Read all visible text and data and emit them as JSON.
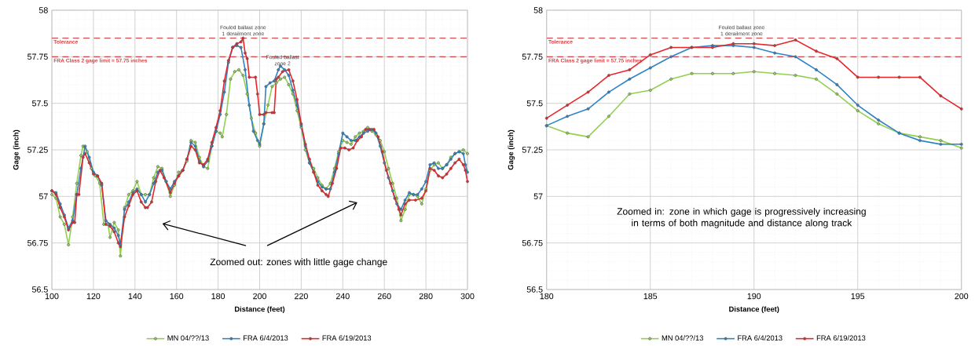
{
  "chart_data": [
    {
      "type": "line",
      "xlabel": "Distance (feet)",
      "ylabel": "Gage (inch)",
      "xlim": [
        100,
        300
      ],
      "xticks": [
        100,
        120,
        140,
        160,
        180,
        200,
        220,
        240,
        260,
        280,
        300
      ],
      "ylim": [
        56.5,
        58
      ],
      "yticks": [
        56.5,
        56.75,
        57,
        57.25,
        57.5,
        57.75,
        58
      ],
      "grid": true,
      "legend": "bottom",
      "marker": "circle",
      "line_style": "solid",
      "series": [
        {
          "name": "MN 04/??/13",
          "color": "#92d050",
          "x": [
            100,
            102,
            104,
            106,
            108,
            110,
            112,
            114,
            115,
            117,
            119,
            121,
            123,
            125,
            127,
            128,
            130,
            132,
            133,
            135,
            137,
            139,
            141,
            143,
            145,
            147,
            149,
            151,
            153,
            155,
            157,
            159,
            161,
            163,
            165,
            167,
            169,
            171,
            173,
            175,
            177,
            179,
            181,
            182,
            184,
            186,
            188,
            190,
            192,
            194,
            196,
            198,
            200,
            202,
            204,
            206,
            208,
            210,
            212,
            214,
            216,
            218,
            220,
            222,
            224,
            226,
            228,
            230,
            232,
            234,
            236,
            238,
            240,
            242,
            244,
            246,
            248,
            250,
            252,
            254,
            256,
            258,
            260,
            262,
            264,
            266,
            268,
            270,
            272,
            274,
            276,
            278,
            280,
            282,
            284,
            286,
            288,
            290,
            292,
            294,
            296,
            298,
            300
          ],
          "values": [
            57.01,
            56.99,
            56.89,
            56.85,
            56.74,
            56.89,
            57.07,
            57.22,
            57.27,
            57.24,
            57.15,
            57.11,
            57.07,
            56.85,
            56.85,
            56.78,
            56.86,
            56.82,
            56.68,
            56.94,
            57.01,
            57.03,
            57.08,
            57.01,
            57.01,
            57.01,
            57.1,
            57.16,
            57.15,
            57.08,
            57.0,
            57.06,
            57.13,
            57.14,
            57.19,
            57.3,
            57.29,
            57.21,
            57.16,
            57.15,
            57.27,
            57.35,
            57.34,
            57.32,
            57.44,
            57.63,
            57.67,
            57.68,
            57.65,
            57.55,
            57.42,
            57.34,
            57.27,
            57.39,
            57.49,
            57.59,
            57.61,
            57.63,
            57.64,
            57.6,
            57.55,
            57.46,
            57.37,
            57.25,
            57.18,
            57.15,
            57.1,
            57.06,
            57.04,
            57.07,
            57.15,
            57.24,
            57.3,
            57.29,
            57.28,
            57.32,
            57.34,
            57.35,
            57.37,
            57.35,
            57.33,
            57.3,
            57.24,
            57.15,
            57.07,
            56.99,
            56.87,
            56.93,
            57.01,
            57.01,
            57.0,
            56.96,
            57.04,
            57.14,
            57.17,
            57.18,
            57.15,
            57.17,
            57.21,
            57.23,
            57.24,
            57.25,
            57.23
          ]
        },
        {
          "name": "FRA 6/4/2013",
          "color": "#2e84c6",
          "x": [
            100,
            102,
            104,
            106,
            108,
            110,
            112,
            114,
            116,
            118,
            120,
            122,
            124,
            126,
            128,
            130,
            132,
            133,
            135,
            137,
            139,
            141,
            143,
            145,
            147,
            149,
            151,
            153,
            155,
            157,
            159,
            161,
            163,
            165,
            167,
            169,
            171,
            173,
            175,
            177,
            179,
            181,
            183,
            185,
            187,
            189,
            191,
            193,
            195,
            197,
            199,
            200,
            202,
            203,
            205,
            207,
            209,
            210,
            212,
            214,
            216,
            218,
            220,
            222,
            224,
            226,
            228,
            230,
            232,
            234,
            236,
            238,
            240,
            242,
            244,
            246,
            248,
            250,
            252,
            254,
            256,
            258,
            260,
            262,
            264,
            266,
            268,
            270,
            272,
            274,
            276,
            278,
            280,
            282,
            284,
            286,
            288,
            290,
            292,
            294,
            296,
            298,
            299,
            300
          ],
          "values": [
            57.03,
            57.02,
            56.96,
            56.9,
            56.83,
            56.87,
            57.01,
            57.15,
            57.27,
            57.21,
            57.13,
            57.11,
            57.06,
            56.87,
            56.85,
            56.83,
            56.79,
            56.74,
            56.93,
            56.97,
            57.02,
            57.04,
            57.01,
            56.97,
            57.01,
            57.07,
            57.13,
            57.14,
            57.08,
            57.04,
            57.08,
            57.11,
            57.14,
            57.2,
            57.29,
            57.27,
            57.19,
            57.16,
            57.19,
            57.27,
            57.35,
            57.44,
            57.56,
            57.72,
            57.8,
            57.81,
            57.8,
            57.68,
            57.49,
            57.35,
            57.3,
            57.28,
            57.39,
            57.59,
            57.61,
            57.62,
            57.68,
            57.7,
            57.68,
            57.65,
            57.57,
            57.49,
            57.38,
            57.27,
            57.18,
            57.13,
            57.08,
            57.05,
            57.04,
            57.04,
            57.13,
            57.23,
            57.34,
            57.32,
            57.3,
            57.3,
            57.32,
            57.34,
            57.35,
            57.36,
            57.34,
            57.27,
            57.18,
            57.1,
            57.03,
            56.96,
            56.93,
            56.98,
            57.02,
            57.01,
            57.01,
            57.04,
            57.08,
            57.17,
            57.18,
            57.15,
            57.15,
            57.17,
            57.2,
            57.23,
            57.24,
            57.23,
            57.17,
            57.13
          ]
        },
        {
          "name": "FRA 6/19/2013",
          "color": "#e8262a",
          "x": [
            100,
            102,
            104,
            106,
            108,
            110,
            111,
            112,
            113,
            115,
            116,
            118,
            120,
            122,
            124,
            126,
            128,
            130,
            132,
            133,
            135,
            137,
            139,
            141,
            143,
            145,
            146,
            148,
            150,
            152,
            154,
            157,
            159,
            161,
            163,
            165,
            167,
            169,
            171,
            173,
            175,
            177,
            179,
            181,
            183,
            185,
            187,
            189,
            191,
            192,
            193,
            194,
            195,
            198,
            199,
            200,
            202,
            203,
            206,
            207,
            208,
            209,
            211,
            214,
            216,
            218,
            220,
            222,
            224,
            226,
            228,
            230,
            232,
            233,
            235,
            237,
            239,
            241,
            243,
            245,
            247,
            249,
            251,
            253,
            255,
            257,
            259,
            261,
            263,
            265,
            267,
            268,
            270,
            272,
            275,
            278,
            280,
            282,
            284,
            286,
            288,
            290,
            292,
            294,
            296,
            298,
            299,
            300
          ],
          "values": [
            57.03,
            57.01,
            56.94,
            56.89,
            56.82,
            56.86,
            56.86,
            57.01,
            57.01,
            57.21,
            57.23,
            57.18,
            57.12,
            57.11,
            57.07,
            56.85,
            56.84,
            56.81,
            56.75,
            56.73,
            56.89,
            56.95,
            57.01,
            57.03,
            56.97,
            56.94,
            56.94,
            56.97,
            57.08,
            57.14,
            57.1,
            57.02,
            57.07,
            57.11,
            57.14,
            57.2,
            57.27,
            57.25,
            57.18,
            57.17,
            57.2,
            57.29,
            57.37,
            57.46,
            57.62,
            57.73,
            57.8,
            57.82,
            57.83,
            57.85,
            57.77,
            57.74,
            57.64,
            57.64,
            57.55,
            57.44,
            57.44,
            57.45,
            57.45,
            57.45,
            57.63,
            57.64,
            57.67,
            57.68,
            57.62,
            57.52,
            57.39,
            57.28,
            57.2,
            57.13,
            57.06,
            57.03,
            57.01,
            57.0,
            57.07,
            57.15,
            57.26,
            57.26,
            57.25,
            57.26,
            57.3,
            57.32,
            57.36,
            57.36,
            57.36,
            57.32,
            57.24,
            57.14,
            57.07,
            56.99,
            56.93,
            56.9,
            56.96,
            56.98,
            56.98,
            56.99,
            57.03,
            57.15,
            57.14,
            57.11,
            57.1,
            57.12,
            57.15,
            57.18,
            57.2,
            57.17,
            57.14,
            57.08
          ]
        }
      ],
      "ref_lines": [
        {
          "axis": "y",
          "value": 57.85,
          "label": "Tolerance",
          "color": "#d0464a",
          "line_style": "dashed"
        },
        {
          "axis": "y",
          "value": 57.75,
          "label": "FRA Class 2 gage limit = 57.75 inches",
          "color": "#d0464a",
          "line_style": "dashed"
        }
      ],
      "annotations": [
        {
          "text": "Fouled ballast zone 1 derailment zone",
          "x": 192,
          "y": 57.86
        },
        {
          "text": "Fouled ballast zone 2",
          "x": 211,
          "y": 57.7
        },
        "Zoomed out: zones with little gage change"
      ]
    },
    {
      "type": "line",
      "xlabel": "Distance (feet)",
      "ylabel": "Gage (inch)",
      "xlim": [
        180,
        200
      ],
      "xticks": [
        180,
        185,
        190,
        195,
        200
      ],
      "ylim": [
        56.5,
        58
      ],
      "yticks": [
        56.5,
        56.75,
        57,
        57.25,
        57.5,
        57.75,
        58
      ],
      "grid": true,
      "legend": "bottom",
      "marker": "circle",
      "line_style": "solid",
      "series": [
        {
          "name": "MN 04/??/13",
          "color": "#92d050",
          "x": [
            180,
            181,
            182,
            183,
            184,
            185,
            186,
            187,
            188,
            189,
            190,
            191,
            192,
            193,
            194,
            195,
            196,
            197,
            198,
            199,
            200
          ],
          "values": [
            57.38,
            57.34,
            57.32,
            57.43,
            57.55,
            57.57,
            57.63,
            57.66,
            57.66,
            57.66,
            57.67,
            57.66,
            57.65,
            57.63,
            57.55,
            57.46,
            57.39,
            57.34,
            57.32,
            57.3,
            57.26
          ]
        },
        {
          "name": "FRA 6/4/2013",
          "color": "#2e84c6",
          "x": [
            180,
            181,
            182,
            183,
            184,
            185,
            186,
            187,
            188,
            189,
            190,
            191,
            192,
            193,
            194,
            195,
            196,
            197,
            198,
            199,
            200
          ],
          "values": [
            57.38,
            57.43,
            57.47,
            57.56,
            57.63,
            57.69,
            57.75,
            57.8,
            57.81,
            57.81,
            57.8,
            57.77,
            57.75,
            57.68,
            57.6,
            57.49,
            57.41,
            57.34,
            57.3,
            57.28,
            57.28
          ]
        },
        {
          "name": "FRA 6/19/2013",
          "color": "#e8262a",
          "x": [
            180,
            181,
            182,
            183,
            184,
            185,
            186,
            187,
            188,
            189,
            190,
            191,
            192,
            193,
            194,
            195,
            196,
            197,
            198,
            199,
            200
          ],
          "values": [
            57.42,
            57.49,
            57.56,
            57.65,
            57.68,
            57.76,
            57.8,
            57.8,
            57.8,
            57.82,
            57.82,
            57.81,
            57.84,
            57.78,
            57.74,
            57.64,
            57.64,
            57.64,
            57.64,
            57.54,
            57.47
          ]
        }
      ],
      "ref_lines": [
        {
          "axis": "y",
          "value": 57.85,
          "label": "Tolerance",
          "color": "#d0464a",
          "line_style": "dashed"
        },
        {
          "axis": "y",
          "value": 57.75,
          "label": "FRA Class 2 gage limit = 57.75 inches",
          "color": "#d0464a",
          "line_style": "dashed"
        }
      ],
      "annotations": [
        {
          "text": "Fouled ballast zone 1 derailment zone",
          "x": 189.4,
          "y": 57.86
        },
        "Zoomed in: zone in which gage is progressively increasing in terms of both magnitude and distance along track"
      ]
    }
  ]
}
